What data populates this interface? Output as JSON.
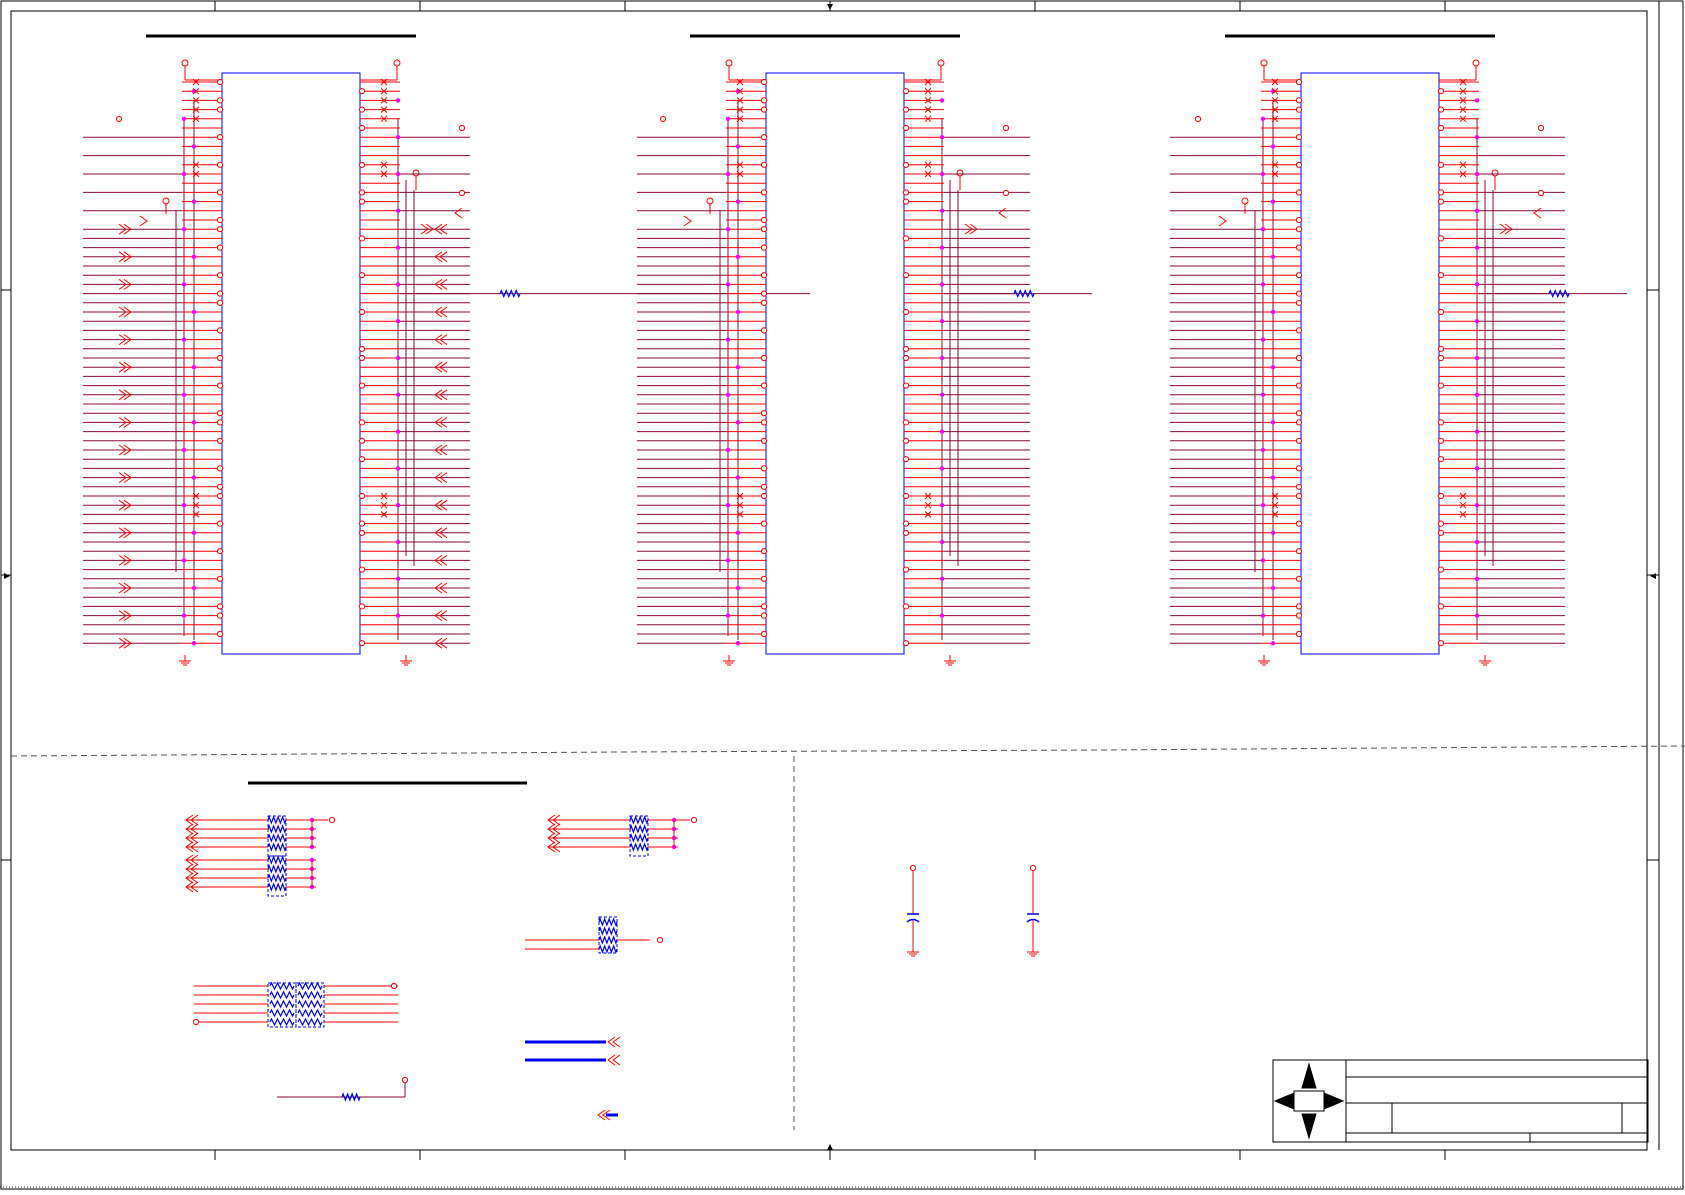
{
  "sheet": {
    "zones_marked": true
  },
  "sections": {
    "top": {
      "components": 3
    },
    "bottom_left": {
      "resistor_networks": 5
    },
    "bottom_right": {
      "capacitors": 2
    }
  },
  "colors": {
    "frame": "#000000",
    "wire": "#ff0000",
    "bus": "#8b0a3a",
    "component": "#0000ff",
    "junction": "#ff00ff",
    "title_bar": "#000000"
  },
  "icons": [
    "compass-logo-icon",
    "ground-icon",
    "power-port-icon",
    "offpage-connector-icon",
    "resistor-icon",
    "capacitor-icon",
    "no-connect-icon"
  ]
}
